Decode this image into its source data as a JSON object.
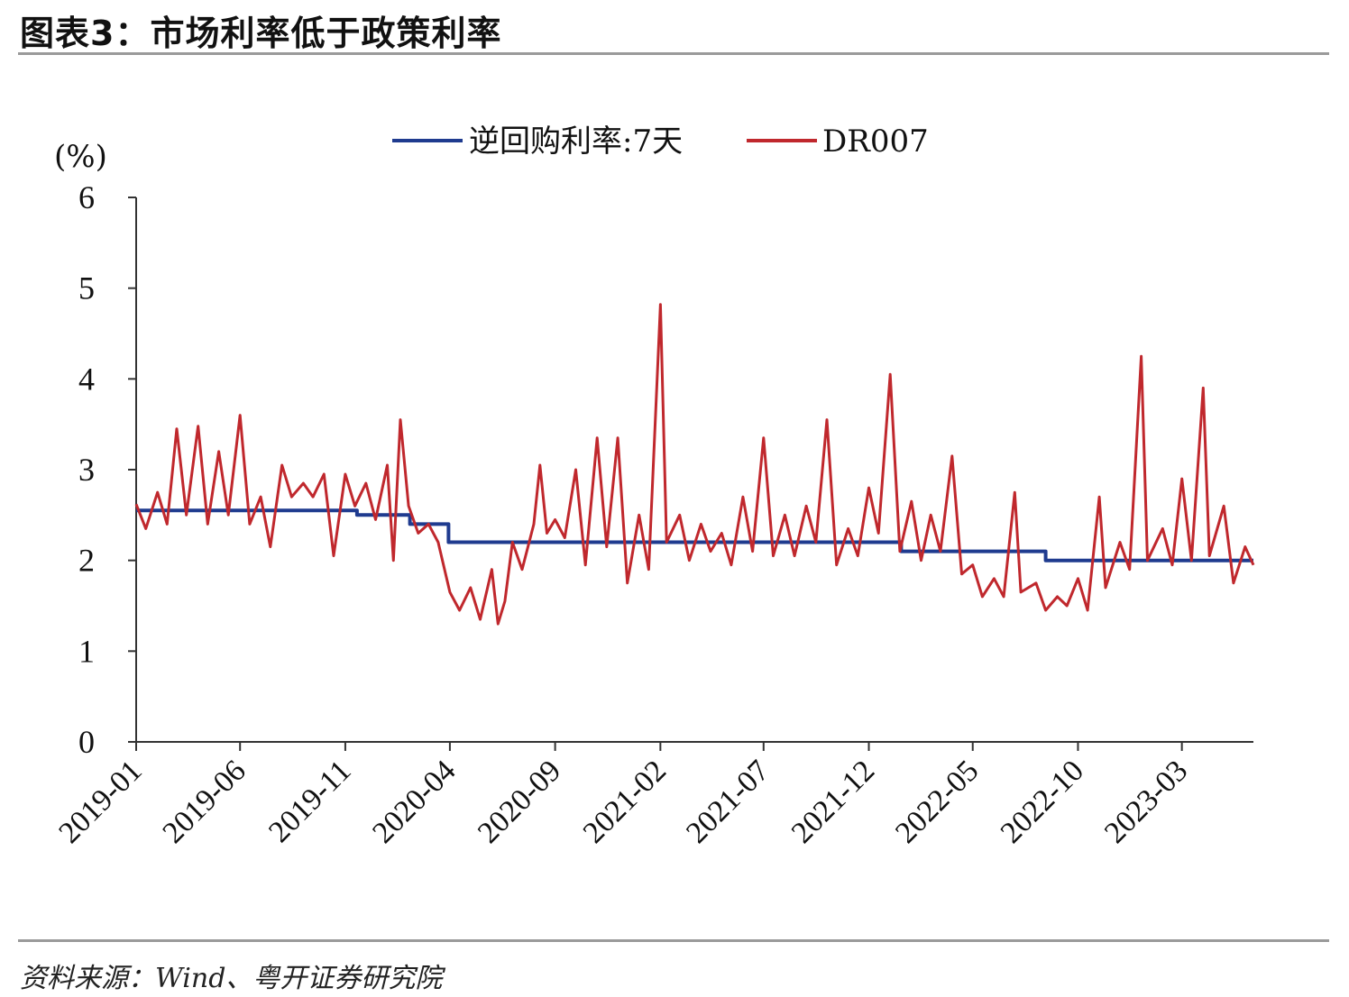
{
  "header": {
    "title": "图表3：市场利率低于政策利率"
  },
  "footer": {
    "source": "资料来源：Wind、粤开证券研究院"
  },
  "colors": {
    "policy": "#1f3b8f",
    "market": "#c0282d",
    "axis": "#333333",
    "rule": "#9a9a9a"
  },
  "chart_data": {
    "type": "line",
    "title": "",
    "xlabel": "",
    "ylabel": "(%)",
    "ylim": [
      0,
      6
    ],
    "yticks": [
      "0",
      "1",
      "2",
      "3",
      "4",
      "5",
      "6"
    ],
    "x_ticks": [
      "2019-01",
      "2019-06",
      "2019-11",
      "2020-04",
      "2020-09",
      "2021-02",
      "2021-07",
      "2021-12",
      "2022-05",
      "2022-10",
      "2023-03"
    ],
    "legend_position": "top-center",
    "series": [
      {
        "name": "逆回购利率:7天",
        "color": "#1f3b8f",
        "points": [
          {
            "x": "2019-01",
            "y": 2.55
          },
          {
            "x": "2019-06",
            "y": 2.55
          },
          {
            "x": "2019-11",
            "y": 2.55
          },
          {
            "x": "2019-11-18",
            "y": 2.5
          },
          {
            "x": "2020-02-03",
            "y": 2.4
          },
          {
            "x": "2020-03-30",
            "y": 2.2
          },
          {
            "x": "2022-01-17",
            "y": 2.1
          },
          {
            "x": "2022-08-15",
            "y": 2.0
          },
          {
            "x": "2023-06-13",
            "y": 2.0
          }
        ]
      },
      {
        "name": "DR007",
        "color": "#c0282d",
        "points": [
          {
            "x": "2019-01",
            "y": 2.62
          },
          {
            "x": "2019-01-15",
            "y": 2.35
          },
          {
            "x": "2019-02",
            "y": 2.75
          },
          {
            "x": "2019-02-15",
            "y": 2.4
          },
          {
            "x": "2019-03",
            "y": 3.45
          },
          {
            "x": "2019-03-15",
            "y": 2.5
          },
          {
            "x": "2019-04",
            "y": 3.48
          },
          {
            "x": "2019-04-15",
            "y": 2.4
          },
          {
            "x": "2019-05",
            "y": 3.2
          },
          {
            "x": "2019-05-15",
            "y": 2.5
          },
          {
            "x": "2019-06",
            "y": 3.6
          },
          {
            "x": "2019-06-15",
            "y": 2.4
          },
          {
            "x": "2019-07",
            "y": 2.7
          },
          {
            "x": "2019-07-15",
            "y": 2.15
          },
          {
            "x": "2019-08",
            "y": 3.05
          },
          {
            "x": "2019-08-15",
            "y": 2.7
          },
          {
            "x": "2019-09",
            "y": 2.85
          },
          {
            "x": "2019-09-15",
            "y": 2.7
          },
          {
            "x": "2019-10",
            "y": 2.95
          },
          {
            "x": "2019-10-15",
            "y": 2.05
          },
          {
            "x": "2019-11",
            "y": 2.95
          },
          {
            "x": "2019-11-15",
            "y": 2.6
          },
          {
            "x": "2019-12",
            "y": 2.85
          },
          {
            "x": "2019-12-15",
            "y": 2.45
          },
          {
            "x": "2020-01",
            "y": 3.05
          },
          {
            "x": "2020-01-10",
            "y": 2.0
          },
          {
            "x": "2020-01-20",
            "y": 3.55
          },
          {
            "x": "2020-02",
            "y": 2.6
          },
          {
            "x": "2020-02-15",
            "y": 2.3
          },
          {
            "x": "2020-03",
            "y": 2.4
          },
          {
            "x": "2020-03-15",
            "y": 2.2
          },
          {
            "x": "2020-04",
            "y": 1.65
          },
          {
            "x": "2020-04-15",
            "y": 1.45
          },
          {
            "x": "2020-05",
            "y": 1.7
          },
          {
            "x": "2020-05-15",
            "y": 1.35
          },
          {
            "x": "2020-06",
            "y": 1.9
          },
          {
            "x": "2020-06-10",
            "y": 1.3
          },
          {
            "x": "2020-06-20",
            "y": 1.55
          },
          {
            "x": "2020-07",
            "y": 2.2
          },
          {
            "x": "2020-07-15",
            "y": 1.9
          },
          {
            "x": "2020-08",
            "y": 2.4
          },
          {
            "x": "2020-08-10",
            "y": 3.05
          },
          {
            "x": "2020-08-20",
            "y": 2.3
          },
          {
            "x": "2020-09",
            "y": 2.45
          },
          {
            "x": "2020-09-15",
            "y": 2.25
          },
          {
            "x": "2020-10",
            "y": 3.0
          },
          {
            "x": "2020-10-15",
            "y": 1.95
          },
          {
            "x": "2020-11",
            "y": 3.35
          },
          {
            "x": "2020-11-15",
            "y": 2.15
          },
          {
            "x": "2020-12",
            "y": 3.35
          },
          {
            "x": "2020-12-15",
            "y": 1.75
          },
          {
            "x": "2021-01",
            "y": 2.5
          },
          {
            "x": "2021-01-15",
            "y": 1.9
          },
          {
            "x": "2021-02",
            "y": 4.82
          },
          {
            "x": "2021-02-10",
            "y": 2.2
          },
          {
            "x": "2021-03",
            "y": 2.5
          },
          {
            "x": "2021-03-15",
            "y": 2.0
          },
          {
            "x": "2021-04",
            "y": 2.4
          },
          {
            "x": "2021-04-15",
            "y": 2.1
          },
          {
            "x": "2021-05",
            "y": 2.3
          },
          {
            "x": "2021-05-15",
            "y": 1.95
          },
          {
            "x": "2021-06",
            "y": 2.7
          },
          {
            "x": "2021-06-15",
            "y": 2.1
          },
          {
            "x": "2021-07",
            "y": 3.35
          },
          {
            "x": "2021-07-15",
            "y": 2.05
          },
          {
            "x": "2021-08",
            "y": 2.5
          },
          {
            "x": "2021-08-15",
            "y": 2.05
          },
          {
            "x": "2021-09",
            "y": 2.6
          },
          {
            "x": "2021-09-15",
            "y": 2.2
          },
          {
            "x": "2021-10",
            "y": 3.55
          },
          {
            "x": "2021-10-15",
            "y": 1.95
          },
          {
            "x": "2021-11",
            "y": 2.35
          },
          {
            "x": "2021-11-15",
            "y": 2.05
          },
          {
            "x": "2021-12",
            "y": 2.8
          },
          {
            "x": "2021-12-15",
            "y": 2.3
          },
          {
            "x": "2022-01",
            "y": 4.05
          },
          {
            "x": "2022-01-15",
            "y": 2.1
          },
          {
            "x": "2022-02",
            "y": 2.65
          },
          {
            "x": "2022-02-15",
            "y": 2.0
          },
          {
            "x": "2022-03",
            "y": 2.5
          },
          {
            "x": "2022-03-15",
            "y": 2.1
          },
          {
            "x": "2022-04",
            "y": 3.15
          },
          {
            "x": "2022-04-15",
            "y": 1.85
          },
          {
            "x": "2022-05",
            "y": 1.95
          },
          {
            "x": "2022-05-15",
            "y": 1.6
          },
          {
            "x": "2022-06",
            "y": 1.8
          },
          {
            "x": "2022-06-15",
            "y": 1.6
          },
          {
            "x": "2022-07",
            "y": 2.75
          },
          {
            "x": "2022-07-10",
            "y": 1.65
          },
          {
            "x": "2022-08",
            "y": 1.75
          },
          {
            "x": "2022-08-15",
            "y": 1.45
          },
          {
            "x": "2022-09",
            "y": 1.6
          },
          {
            "x": "2022-09-15",
            "y": 1.5
          },
          {
            "x": "2022-10",
            "y": 1.8
          },
          {
            "x": "2022-10-15",
            "y": 1.45
          },
          {
            "x": "2022-11",
            "y": 2.7
          },
          {
            "x": "2022-11-10",
            "y": 1.7
          },
          {
            "x": "2022-12",
            "y": 2.2
          },
          {
            "x": "2022-12-15",
            "y": 1.9
          },
          {
            "x": "2023-01",
            "y": 4.25
          },
          {
            "x": "2023-01-10",
            "y": 2.0
          },
          {
            "x": "2023-02",
            "y": 2.35
          },
          {
            "x": "2023-02-15",
            "y": 1.95
          },
          {
            "x": "2023-03",
            "y": 2.9
          },
          {
            "x": "2023-03-15",
            "y": 2.0
          },
          {
            "x": "2023-04",
            "y": 3.9
          },
          {
            "x": "2023-04-10",
            "y": 2.05
          },
          {
            "x": "2023-05",
            "y": 2.6
          },
          {
            "x": "2023-05-15",
            "y": 1.75
          },
          {
            "x": "2023-06",
            "y": 2.15
          },
          {
            "x": "2023-06-13",
            "y": 1.95
          }
        ]
      }
    ]
  }
}
